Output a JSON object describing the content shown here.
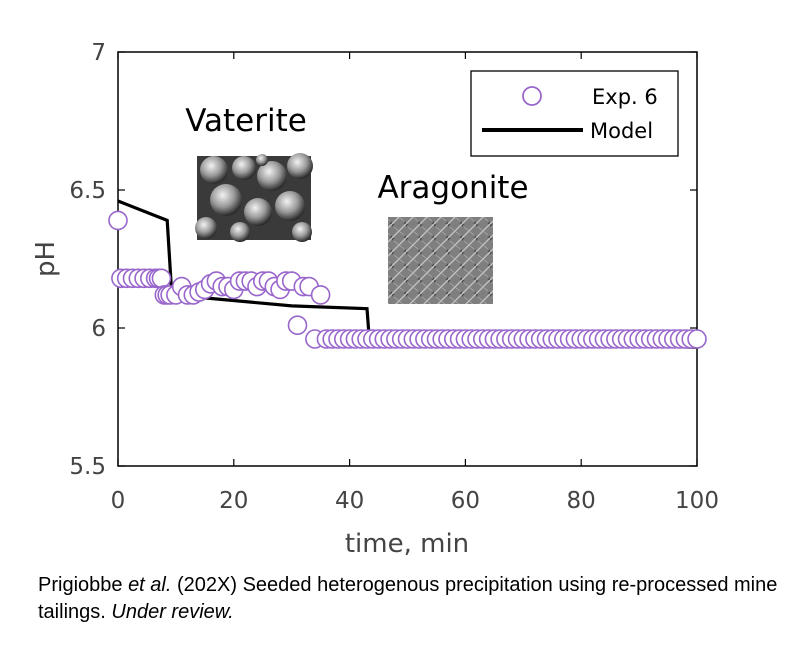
{
  "chart_data": {
    "type": "line",
    "title": "",
    "xlabel": "time, min",
    "ylabel": "pH",
    "xlim": [
      0,
      100
    ],
    "ylim": [
      5.5,
      7
    ],
    "xticks": [
      "0",
      "20",
      "40",
      "60",
      "80",
      "100"
    ],
    "yticks": [
      "5.5",
      "6",
      "6.5",
      "7"
    ],
    "grid": false,
    "legend_position": "top-right",
    "series": [
      {
        "name": "Exp. 6",
        "kind": "scatter",
        "marker": "open-circle",
        "color": "#9966cc",
        "x": [
          0,
          0.5,
          1.5,
          2.5,
          3.5,
          4.5,
          5.5,
          6.5,
          7,
          7.5,
          8,
          8.5,
          9,
          10,
          11,
          12,
          13,
          14,
          15,
          16,
          17,
          18,
          19,
          20,
          21,
          22,
          23,
          24,
          25,
          26,
          27,
          28,
          29,
          30,
          31,
          32,
          33,
          34,
          35,
          36,
          37,
          38,
          39,
          40,
          41,
          42,
          43,
          44,
          45,
          46,
          47,
          48,
          49,
          50,
          51,
          52,
          53,
          54,
          55,
          56,
          57,
          58,
          59,
          60,
          61,
          62,
          63,
          64,
          65,
          66,
          67,
          68,
          69,
          70,
          71,
          72,
          73,
          74,
          75,
          76,
          77,
          78,
          79,
          80,
          81,
          82,
          83,
          84,
          85,
          86,
          87,
          88,
          89,
          90,
          91,
          92,
          93,
          94,
          95,
          96,
          97,
          98,
          99,
          100
        ],
        "y": [
          6.39,
          6.18,
          6.18,
          6.18,
          6.18,
          6.18,
          6.18,
          6.18,
          6.18,
          6.18,
          6.12,
          6.12,
          6.12,
          6.12,
          6.15,
          6.12,
          6.12,
          6.13,
          6.14,
          6.16,
          6.17,
          6.15,
          6.15,
          6.14,
          6.17,
          6.17,
          6.17,
          6.15,
          6.17,
          6.17,
          6.15,
          6.14,
          6.17,
          6.17,
          6.01,
          6.15,
          6.15,
          5.96,
          6.12,
          5.96,
          5.96,
          5.96,
          5.96,
          5.96,
          5.96,
          5.96,
          5.96,
          5.96,
          5.96,
          5.96,
          5.96,
          5.96,
          5.96,
          5.96,
          5.96,
          5.96,
          5.96,
          5.96,
          5.96,
          5.96,
          5.96,
          5.96,
          5.96,
          5.96,
          5.96,
          5.96,
          5.96,
          5.96,
          5.96,
          5.96,
          5.96,
          5.96,
          5.96,
          5.96,
          5.96,
          5.96,
          5.96,
          5.96,
          5.96,
          5.96,
          5.96,
          5.96,
          5.96,
          5.96,
          5.96,
          5.96,
          5.96,
          5.96,
          5.96,
          5.96,
          5.96,
          5.96,
          5.96,
          5.96,
          5.96,
          5.96,
          5.96,
          5.96,
          5.96,
          5.96,
          5.96,
          5.96,
          5.96,
          5.96
        ]
      },
      {
        "name": "Model",
        "kind": "line",
        "color": "#000000",
        "x": [
          0,
          8.5,
          9.3,
          30,
          43,
          43.4,
          100
        ],
        "y": [
          6.46,
          6.39,
          6.12,
          6.08,
          6.07,
          5.96,
          5.93
        ]
      }
    ],
    "annotations": [
      {
        "text": "Vaterite",
        "x": 20,
        "y": 6.75
      },
      {
        "text": "Aragonite",
        "x": 58,
        "y": 6.52
      }
    ]
  },
  "caption": {
    "authors": "Prigiobbe ",
    "etal": "et al.",
    "rest": " (202X) Seeded heterogenous precipitation using re-processed mine tailings. ",
    "status": "Under review."
  }
}
